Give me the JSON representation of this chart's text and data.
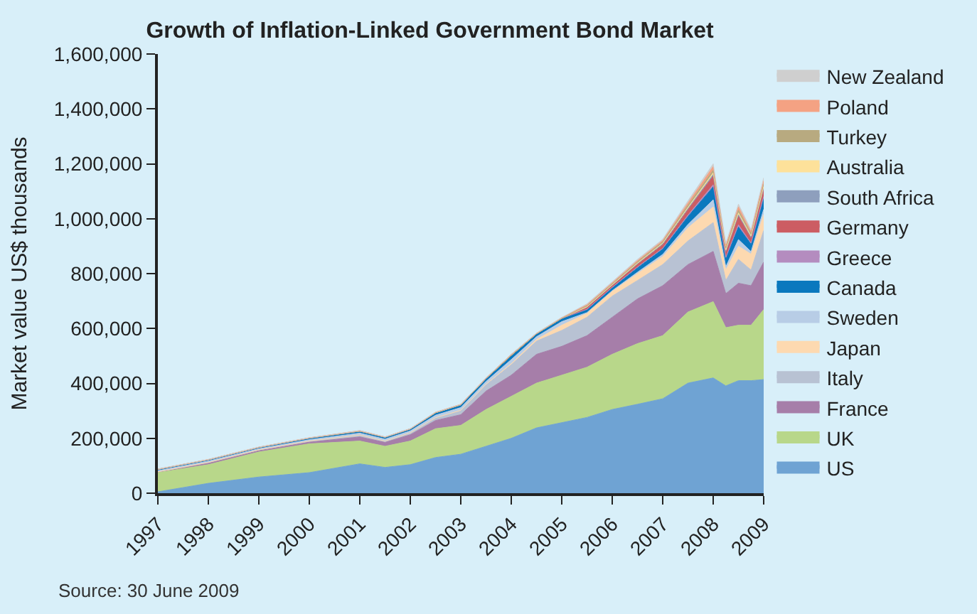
{
  "chart_data": {
    "type": "area",
    "title": "Growth of Inflation-Linked Government Bond Market",
    "ylabel": "Market value US$ thousands",
    "annotations": [
      "Source: 30 June 2009"
    ],
    "x": [
      1997,
      1998,
      1999,
      2000,
      2001,
      2001.5,
      2002,
      2002.5,
      2003,
      2003.5,
      2004,
      2004.5,
      2005,
      2005.5,
      2006,
      2006.5,
      2007,
      2007.5,
      2008,
      2008.25,
      2008.5,
      2008.75,
      2009
    ],
    "stacked": true,
    "grid": false,
    "legend": "right",
    "xlim": [
      1997,
      2009
    ],
    "xticks": [
      1997,
      1998,
      1999,
      2000,
      2001,
      2002,
      2003,
      2004,
      2005,
      2006,
      2007,
      2008,
      2009
    ],
    "ylim": [
      0,
      1600000
    ],
    "yticks": [
      {
        "value": 0,
        "label": "0"
      },
      {
        "value": 200000,
        "label": "200,000"
      },
      {
        "value": 400000,
        "label": "400,000"
      },
      {
        "value": 600000,
        "label": "600,000"
      },
      {
        "value": 800000,
        "label": "800,000"
      },
      {
        "value": 1000000,
        "label": "1,000,000"
      },
      {
        "value": 1200000,
        "label": "1,200,000"
      },
      {
        "value": 1400000,
        "label": "1,400,000"
      },
      {
        "value": 1600000,
        "label": "1,600,000"
      }
    ],
    "series": [
      {
        "name": "US",
        "color": "#6fa3d3",
        "values": [
          5000,
          36000,
          59000,
          75000,
          107000,
          94000,
          104000,
          130000,
          142000,
          171000,
          200000,
          238000,
          257000,
          276000,
          305000,
          324000,
          344000,
          401000,
          420000,
          391000,
          410000,
          410000,
          414000
        ]
      },
      {
        "name": "UK",
        "color": "#b8d78a",
        "values": [
          70000,
          68000,
          91000,
          105000,
          83000,
          77000,
          86000,
          105000,
          105000,
          134000,
          153000,
          163000,
          173000,
          183000,
          201000,
          221000,
          230000,
          259000,
          278000,
          212000,
          202000,
          202000,
          255000
        ]
      },
      {
        "name": "France",
        "color": "#a67ea9",
        "values": [
          3000,
          6000,
          5000,
          6000,
          15000,
          14000,
          23000,
          30000,
          39000,
          67000,
          77000,
          105000,
          105000,
          115000,
          135000,
          163000,
          182000,
          173000,
          183000,
          124000,
          153000,
          144000,
          173000
        ]
      },
      {
        "name": "Italy",
        "color": "#b8c2d3",
        "values": [
          0,
          2000,
          3000,
          4000,
          7000,
          5000,
          7000,
          10000,
          14000,
          23000,
          38000,
          48000,
          58000,
          67000,
          77000,
          67000,
          77000,
          86000,
          105000,
          48000,
          87000,
          57000,
          115000
        ]
      },
      {
        "name": "Japan",
        "color": "#fdd9b0",
        "values": [
          0,
          0,
          0,
          0,
          0,
          0,
          0,
          0,
          2000,
          2000,
          4000,
          6000,
          19000,
          14000,
          17000,
          25000,
          29000,
          48000,
          57000,
          38000,
          48000,
          58000,
          58000
        ]
      },
      {
        "name": "Sweden",
        "color": "#b8cde6",
        "values": [
          4000,
          5000,
          4000,
          5000,
          7000,
          7000,
          7000,
          9000,
          10000,
          10000,
          15000,
          10000,
          13000,
          3000,
          3000,
          5000,
          8000,
          12000,
          26000,
          12000,
          24000,
          9000,
          19000
        ]
      },
      {
        "name": "Canada",
        "color": "#0a78be",
        "values": [
          5000,
          5000,
          5000,
          6000,
          7000,
          7000,
          7000,
          9000,
          10000,
          11000,
          15000,
          11000,
          12000,
          10000,
          10000,
          16000,
          19000,
          29000,
          47000,
          29000,
          46000,
          27000,
          40000
        ]
      },
      {
        "name": "Greece",
        "color": "#b48cbf",
        "values": [
          0,
          0,
          0,
          0,
          0,
          0,
          0,
          0,
          0,
          0,
          0,
          0,
          0,
          2000,
          2000,
          3000,
          3000,
          5000,
          8000,
          5000,
          8000,
          4000,
          7000
        ]
      },
      {
        "name": "Germany",
        "color": "#cc5d63",
        "values": [
          0,
          0,
          0,
          0,
          0,
          0,
          0,
          0,
          0,
          0,
          0,
          0,
          0,
          7000,
          7000,
          10000,
          13000,
          20000,
          31000,
          19000,
          31000,
          18000,
          27000
        ]
      },
      {
        "name": "South Africa",
        "color": "#8e9fbd",
        "values": [
          0,
          0,
          0,
          0,
          0,
          0,
          0,
          0,
          0,
          0,
          0,
          0,
          0,
          1000,
          1000,
          2000,
          3000,
          4000,
          6000,
          4000,
          6000,
          4000,
          5000
        ]
      },
      {
        "name": "Australia",
        "color": "#fde19a",
        "values": [
          0,
          0,
          0,
          0,
          0,
          0,
          0,
          0,
          0,
          0,
          0,
          0,
          0,
          1000,
          1000,
          2000,
          3000,
          4000,
          6000,
          4000,
          6000,
          4000,
          5000
        ]
      },
      {
        "name": "Turkey",
        "color": "#b8aa80",
        "values": [
          0,
          0,
          0,
          0,
          0,
          0,
          0,
          0,
          0,
          0,
          0,
          0,
          0,
          4000,
          4000,
          5000,
          5000,
          8000,
          10000,
          8000,
          10000,
          8000,
          10000
        ]
      },
      {
        "name": "Poland",
        "color": "#f4a283",
        "values": [
          1000,
          1000,
          1000,
          1000,
          2000,
          1000,
          1000,
          2000,
          2000,
          2000,
          4000,
          2000,
          3000,
          3000,
          3000,
          4000,
          4000,
          8000,
          13000,
          7000,
          12000,
          7000,
          11000
        ]
      },
      {
        "name": "New Zealand",
        "color": "#cfcfcf",
        "values": [
          0,
          0,
          0,
          0,
          0,
          0,
          0,
          0,
          0,
          0,
          0,
          0,
          0,
          4000,
          4000,
          5000,
          5000,
          8000,
          10000,
          8000,
          10000,
          8000,
          10000
        ]
      }
    ]
  }
}
